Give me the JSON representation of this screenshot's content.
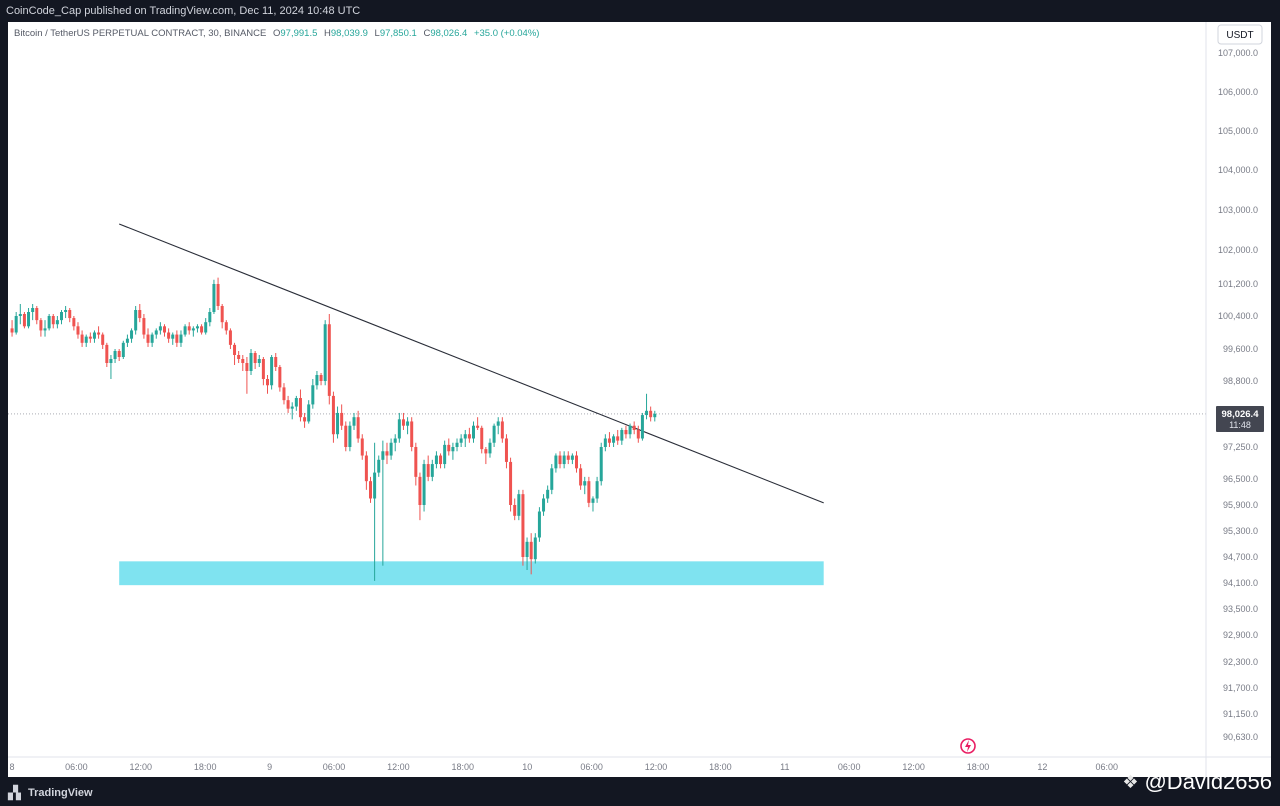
{
  "header": {
    "published": "CoinCode_Cap published on TradingView.com, Dec 11, 2024 10:48 UTC"
  },
  "legend": {
    "symbol": "Bitcoin / TetherUS PERPETUAL CONTRACT, 30, BINANCE",
    "o_label": "O",
    "o": "97,991.5",
    "h_label": "H",
    "h": "98,039.9",
    "l_label": "L",
    "l": "97,850.1",
    "c_label": "C",
    "c": "98,026.4",
    "change": "+35.0 (+0.04%)"
  },
  "currency_button": "USDT",
  "price_tag": {
    "price": "98,026.4",
    "countdown": "11:48"
  },
  "branding": {
    "tradingview": "TradingView",
    "watermark": "@David2656"
  },
  "colors": {
    "up": "#26a69a",
    "down": "#ef5350",
    "zone": "#7fe3f0",
    "line": "#2a2e39",
    "axis_text": "#787b86",
    "tag_bg": "#434651"
  },
  "chart_data": {
    "type": "candlestick",
    "timeframe": "30",
    "y_axis_labels": [
      "107,000.0",
      "106,000.0",
      "105,000.0",
      "104,000.0",
      "103,000.0",
      "102,000.0",
      "101,200.0",
      "100,400.0",
      "99,600.0",
      "98,800.0",
      "97,250.0",
      "96,500.0",
      "95,900.0",
      "95,300.0",
      "94,700.0",
      "94,100.0",
      "93,500.0",
      "92,900.0",
      "92,300.0",
      "91,700.0",
      "91,150.0",
      "90,630.0"
    ],
    "x_axis_labels": [
      "8",
      "06:00",
      "12:00",
      "18:00",
      "9",
      "06:00",
      "12:00",
      "18:00",
      "10",
      "06:00",
      "12:00",
      "18:00",
      "11",
      "06:00",
      "12:00",
      "18:00",
      "12",
      "06:00"
    ],
    "last_price": 98026.4,
    "ohlc": [
      [
        100100,
        100300,
        99900,
        100000
      ],
      [
        100000,
        100500,
        99950,
        100400
      ],
      [
        100400,
        100700,
        100200,
        100450
      ],
      [
        100450,
        100500,
        100100,
        100150
      ],
      [
        100150,
        100600,
        100100,
        100500
      ],
      [
        100500,
        100700,
        100300,
        100600
      ],
      [
        100600,
        100650,
        100200,
        100300
      ],
      [
        100300,
        100350,
        99900,
        100050
      ],
      [
        100050,
        100300,
        99900,
        100100
      ],
      [
        100100,
        100450,
        100050,
        100400
      ],
      [
        100400,
        100450,
        100100,
        100200
      ],
      [
        100200,
        100400,
        100100,
        100300
      ],
      [
        100300,
        100550,
        100200,
        100500
      ],
      [
        100500,
        100650,
        100350,
        100550
      ],
      [
        100550,
        100600,
        100250,
        100350
      ],
      [
        100350,
        100400,
        100050,
        100150
      ],
      [
        100150,
        100250,
        99850,
        99950
      ],
      [
        99950,
        100050,
        99650,
        99750
      ],
      [
        99750,
        99950,
        99650,
        99900
      ],
      [
        99900,
        100000,
        99750,
        99850
      ],
      [
        99850,
        100050,
        99750,
        100000
      ],
      [
        100000,
        100150,
        99850,
        99950
      ],
      [
        99950,
        100000,
        99600,
        99700
      ],
      [
        99700,
        99750,
        99150,
        99250
      ],
      [
        99250,
        99450,
        98850,
        99350
      ],
      [
        99350,
        99600,
        99250,
        99550
      ],
      [
        99550,
        99600,
        99300,
        99400
      ],
      [
        99400,
        99800,
        99350,
        99750
      ],
      [
        99750,
        99950,
        99650,
        99850
      ],
      [
        99850,
        100100,
        99750,
        100050
      ],
      [
        100050,
        100650,
        99950,
        100550
      ],
      [
        100550,
        100700,
        100250,
        100350
      ],
      [
        100350,
        100450,
        99850,
        99950
      ],
      [
        99950,
        100100,
        99650,
        99750
      ],
      [
        99750,
        100000,
        99650,
        99950
      ],
      [
        99950,
        100100,
        99850,
        100050
      ],
      [
        100050,
        100250,
        99950,
        100150
      ],
      [
        100150,
        100200,
        99900,
        100000
      ],
      [
        100000,
        100100,
        99750,
        99850
      ],
      [
        99850,
        100000,
        99700,
        99950
      ],
      [
        99950,
        100050,
        99650,
        99750
      ],
      [
        99750,
        100050,
        99650,
        99950
      ],
      [
        99950,
        100200,
        99900,
        100150
      ],
      [
        100150,
        100250,
        99950,
        100050
      ],
      [
        100050,
        100150,
        99900,
        100100
      ],
      [
        100100,
        100200,
        100000,
        100150
      ],
      [
        100150,
        100200,
        99950,
        100000
      ],
      [
        100000,
        100350,
        99950,
        100250
      ],
      [
        100250,
        100600,
        100150,
        100500
      ],
      [
        100500,
        101300,
        100450,
        101200
      ],
      [
        101200,
        101350,
        100550,
        100650
      ],
      [
        100650,
        100700,
        100100,
        100250
      ],
      [
        100250,
        100300,
        99950,
        100050
      ],
      [
        100050,
        100100,
        99600,
        99700
      ],
      [
        99700,
        99750,
        99200,
        99450
      ],
      [
        99450,
        99550,
        99250,
        99350
      ],
      [
        99350,
        99450,
        99050,
        99250
      ],
      [
        99250,
        99400,
        98500,
        99050
      ],
      [
        99050,
        99600,
        98950,
        99500
      ],
      [
        99500,
        99550,
        99100,
        99250
      ],
      [
        99250,
        99450,
        99150,
        99350
      ],
      [
        99350,
        99400,
        98700,
        98850
      ],
      [
        98850,
        98950,
        98500,
        98700
      ],
      [
        98700,
        99450,
        98600,
        99400
      ],
      [
        99400,
        99500,
        99050,
        99150
      ],
      [
        99150,
        99200,
        98550,
        98650
      ],
      [
        98650,
        98750,
        98250,
        98350
      ],
      [
        98350,
        98450,
        98050,
        98150
      ],
      [
        98150,
        98300,
        97900,
        98200
      ],
      [
        98200,
        98450,
        98100,
        98400
      ],
      [
        98400,
        98600,
        97850,
        97950
      ],
      [
        97950,
        98050,
        97700,
        97850
      ],
      [
        97850,
        98350,
        97800,
        98250
      ],
      [
        98250,
        98850,
        98150,
        98700
      ],
      [
        98700,
        99050,
        98600,
        98950
      ],
      [
        98950,
        99000,
        98700,
        98800
      ],
      [
        98800,
        100300,
        98700,
        100200
      ],
      [
        100200,
        100450,
        98250,
        98450
      ],
      [
        98450,
        98550,
        97350,
        97550
      ],
      [
        97550,
        98200,
        97450,
        98050
      ],
      [
        98050,
        98250,
        97650,
        97750
      ],
      [
        97750,
        97850,
        97150,
        97250
      ],
      [
        97250,
        97850,
        97150,
        97750
      ],
      [
        97750,
        98050,
        97650,
        97950
      ],
      [
        97950,
        98100,
        97350,
        97450
      ],
      [
        97450,
        97550,
        96950,
        97050
      ],
      [
        97050,
        97150,
        96250,
        96450
      ],
      [
        96450,
        96550,
        95950,
        96050
      ],
      [
        96050,
        97350,
        94150,
        96650
      ],
      [
        96650,
        97050,
        96550,
        96950
      ],
      [
        96950,
        97400,
        94500,
        97150
      ],
      [
        97150,
        97350,
        96850,
        97050
      ],
      [
        97050,
        97450,
        96950,
        97350
      ],
      [
        97350,
        97550,
        97150,
        97450
      ],
      [
        97450,
        98050,
        97350,
        97900
      ],
      [
        97900,
        98050,
        97650,
        97750
      ],
      [
        97750,
        97950,
        97550,
        97850
      ],
      [
        97850,
        97950,
        97150,
        97250
      ],
      [
        97250,
        97350,
        96350,
        96550
      ],
      [
        96550,
        96650,
        95550,
        95900
      ],
      [
        95900,
        96950,
        95750,
        96850
      ],
      [
        96850,
        97050,
        96450,
        96550
      ],
      [
        96550,
        96950,
        96450,
        96850
      ],
      [
        96850,
        97150,
        96750,
        97050
      ],
      [
        97050,
        97100,
        96750,
        96850
      ],
      [
        96850,
        97400,
        96750,
        97300
      ],
      [
        97300,
        97450,
        97050,
        97150
      ],
      [
        97150,
        97350,
        96950,
        97250
      ],
      [
        97250,
        97450,
        97150,
        97350
      ],
      [
        97350,
        97550,
        97250,
        97450
      ],
      [
        97450,
        97650,
        97250,
        97550
      ],
      [
        97550,
        97700,
        97350,
        97450
      ],
      [
        97450,
        97850,
        97350,
        97750
      ],
      [
        97750,
        97950,
        97650,
        97700
      ],
      [
        97700,
        97750,
        97100,
        97200
      ],
      [
        97200,
        97250,
        96850,
        97100
      ],
      [
        97100,
        97450,
        97000,
        97350
      ],
      [
        97350,
        97800,
        97250,
        97750
      ],
      [
        97750,
        97950,
        97550,
        97850
      ],
      [
        97850,
        97950,
        97350,
        97450
      ],
      [
        97450,
        97550,
        96750,
        96900
      ],
      [
        96900,
        97000,
        95750,
        95900
      ],
      [
        95900,
        96050,
        95550,
        95650
      ],
      [
        95650,
        96250,
        95550,
        96150
      ],
      [
        96150,
        96250,
        94500,
        94700
      ],
      [
        94700,
        95150,
        94400,
        95050
      ],
      [
        95050,
        95250,
        94300,
        94650
      ],
      [
        94650,
        95250,
        94550,
        95150
      ],
      [
        95150,
        95850,
        95050,
        95750
      ],
      [
        95750,
        96150,
        95650,
        96050
      ],
      [
        96050,
        96350,
        95950,
        96250
      ],
      [
        96250,
        96850,
        96150,
        96750
      ],
      [
        96750,
        97100,
        96650,
        97050
      ],
      [
        97050,
        97150,
        96750,
        96850
      ],
      [
        96850,
        97150,
        96750,
        97050
      ],
      [
        97050,
        97150,
        96850,
        96950
      ],
      [
        96950,
        97100,
        96850,
        97050
      ],
      [
        97050,
        97150,
        96650,
        96750
      ],
      [
        96750,
        96850,
        96250,
        96350
      ],
      [
        96350,
        96550,
        96150,
        96450
      ],
      [
        96450,
        96550,
        95850,
        95950
      ],
      [
        95950,
        96100,
        95750,
        96050
      ],
      [
        96050,
        96550,
        95950,
        96450
      ],
      [
        96450,
        97350,
        96350,
        97250
      ],
      [
        97250,
        97550,
        97150,
        97450
      ],
      [
        97450,
        97600,
        97250,
        97350
      ],
      [
        97350,
        97550,
        97250,
        97500
      ],
      [
        97500,
        97650,
        97300,
        97400
      ],
      [
        97400,
        97700,
        97300,
        97650
      ],
      [
        97650,
        97750,
        97450,
        97550
      ],
      [
        97550,
        97800,
        97450,
        97750
      ],
      [
        97750,
        97850,
        97550,
        97650
      ],
      [
        97650,
        97750,
        97350,
        97450
      ],
      [
        97450,
        98050,
        97400,
        98000
      ],
      [
        98000,
        98500,
        97900,
        98100
      ],
      [
        98100,
        98200,
        97850,
        97950
      ],
      [
        97950,
        98100,
        97850,
        98030
      ]
    ],
    "trendline": {
      "from": {
        "bar": 26,
        "price": 102650
      },
      "to": {
        "bar": 197,
        "price": 95950
      }
    },
    "support_zone": {
      "from_bar": 26,
      "to_bar": 197,
      "top": 94600,
      "bottom": 94050
    }
  }
}
